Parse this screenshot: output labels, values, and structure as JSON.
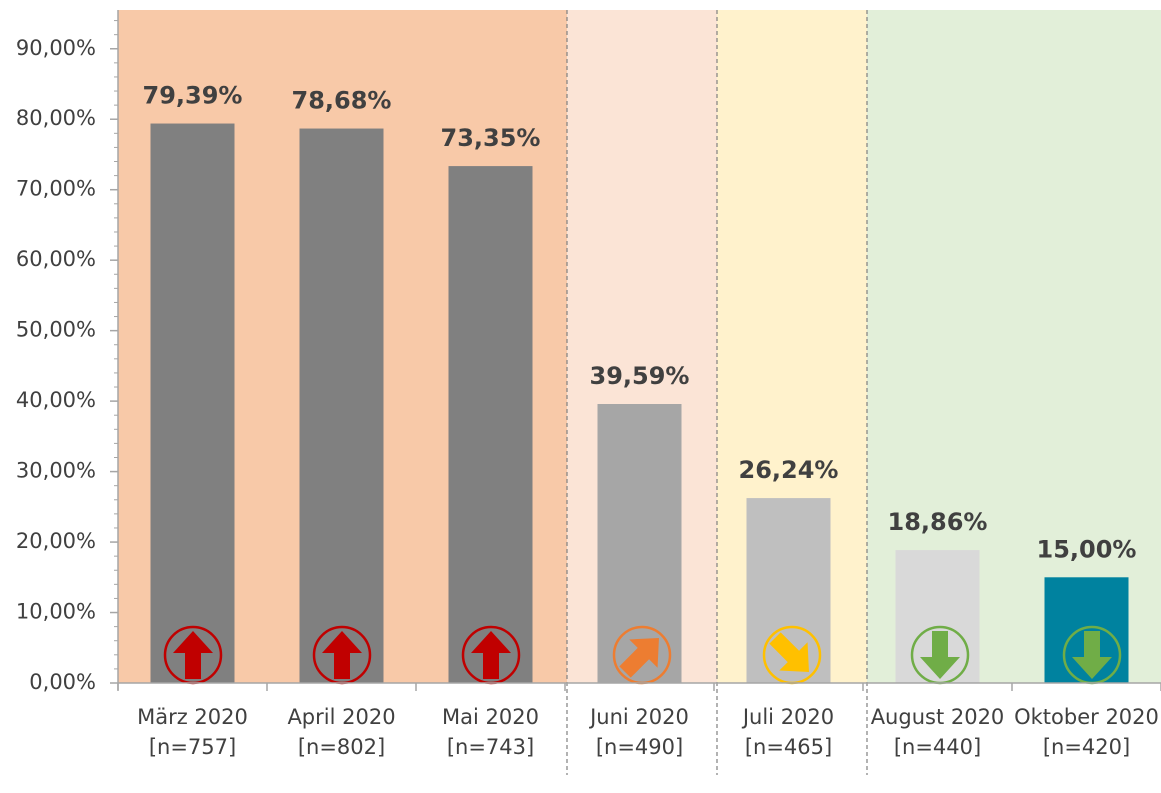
{
  "chart_data": {
    "type": "bar",
    "categories": [
      "März 2020 [n=757]",
      "April 2020 [n=802]",
      "Mai 2020 [n=743]",
      "Juni 2020 [n=490]",
      "Juli 2020 [n=465]",
      "August 2020 [n=440]",
      "Oktober 2020 [n=420]"
    ],
    "values": [
      79.39,
      78.68,
      73.35,
      39.59,
      26.24,
      18.86,
      15.0
    ],
    "value_labels": [
      "79,39%",
      "78,68%",
      "73,35%",
      "39,59%",
      "26,24%",
      "18,86%",
      "15,00%"
    ],
    "colors": [
      "#808080",
      "#808080",
      "#808080",
      "#a6a6a6",
      "#bfbfbf",
      "#d9d9d9",
      "#00829f"
    ],
    "ylim": [
      0,
      95.5
    ],
    "yticks": [
      {
        "value": 0,
        "label": "0,00%"
      },
      {
        "value": 10,
        "label": "10,00%"
      },
      {
        "value": 20,
        "label": "20,00%"
      },
      {
        "value": 30,
        "label": "30,00%"
      },
      {
        "value": 40,
        "label": "40,00%"
      },
      {
        "value": 50,
        "label": "50,00%"
      },
      {
        "value": 60,
        "label": "60,00%"
      },
      {
        "value": 70,
        "label": "70,00%"
      },
      {
        "value": 80,
        "label": "80,00%"
      },
      {
        "value": 90,
        "label": "90,00%"
      }
    ],
    "grid": false
  }
}
